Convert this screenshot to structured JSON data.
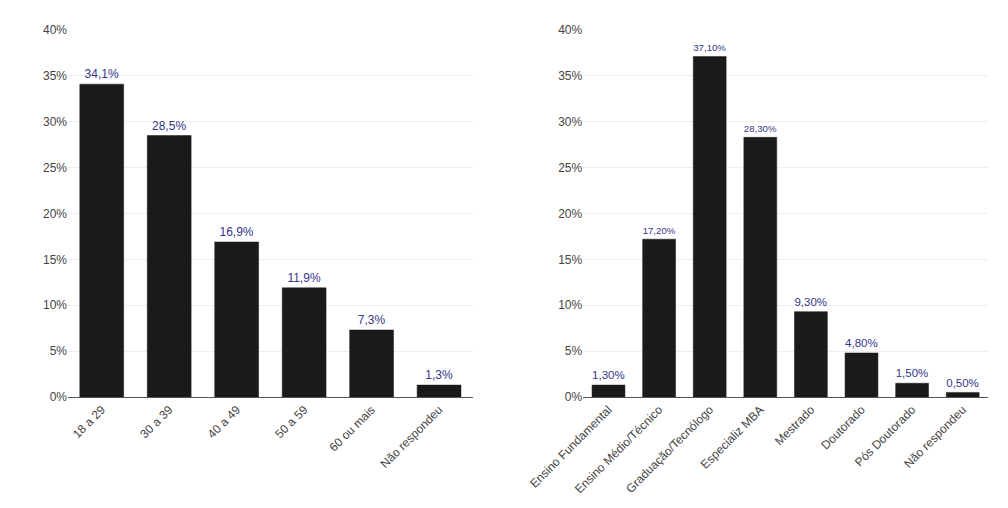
{
  "chart_data": [
    {
      "type": "bar",
      "categories": [
        "18 a 29",
        "30 a 39",
        "40 a 49",
        "50 a 59",
        "60 ou mais",
        "Não respondeu"
      ],
      "values": [
        34.1,
        28.5,
        16.9,
        11.9,
        7.3,
        1.3
      ],
      "value_labels": [
        "34,1%",
        "28,5%",
        "16,9%",
        "11,9%",
        "7,3%",
        "1,3%"
      ],
      "color": "#1a1a1a",
      "ylim": [
        0,
        40
      ],
      "yticks": [
        {
          "value": 0,
          "label": "0%"
        },
        {
          "value": 5,
          "label": "5%"
        },
        {
          "value": 10,
          "label": "10%"
        },
        {
          "value": 15,
          "label": "15%"
        },
        {
          "value": 20,
          "label": "20%"
        },
        {
          "value": 25,
          "label": "25%"
        },
        {
          "value": 30,
          "label": "30%"
        },
        {
          "value": 35,
          "label": "35%"
        },
        {
          "value": 40,
          "label": "40%"
        }
      ],
      "grid": true,
      "data_labels": true
    },
    {
      "type": "bar",
      "categories": [
        "Ensino Fundamental",
        "Ensino Médio/Técnico",
        "Graduação/Tecnólogo",
        "Especializ MBA",
        "Mestrado",
        "Doutorado",
        "Pós Doutorado",
        "Não respondeu"
      ],
      "values": [
        1.3,
        17.2,
        37.1,
        28.3,
        9.3,
        4.8,
        1.5,
        0.5
      ],
      "value_labels": [
        "1,30%",
        "17,20%",
        "37,10%",
        "28,30%",
        "9,30%",
        "4,80%",
        "1,50%",
        "0,50%"
      ],
      "color": "#1a1a1a",
      "ylim": [
        0,
        40
      ],
      "yticks": [
        {
          "value": 0,
          "label": "0%"
        },
        {
          "value": 5,
          "label": "5%"
        },
        {
          "value": 10,
          "label": "10%"
        },
        {
          "value": 15,
          "label": "15%"
        },
        {
          "value": 20,
          "label": "20%"
        },
        {
          "value": 25,
          "label": "25%"
        },
        {
          "value": 30,
          "label": "30%"
        },
        {
          "value": 35,
          "label": "35%"
        },
        {
          "value": 40,
          "label": "40%"
        }
      ],
      "grid": true,
      "data_labels": true
    }
  ]
}
